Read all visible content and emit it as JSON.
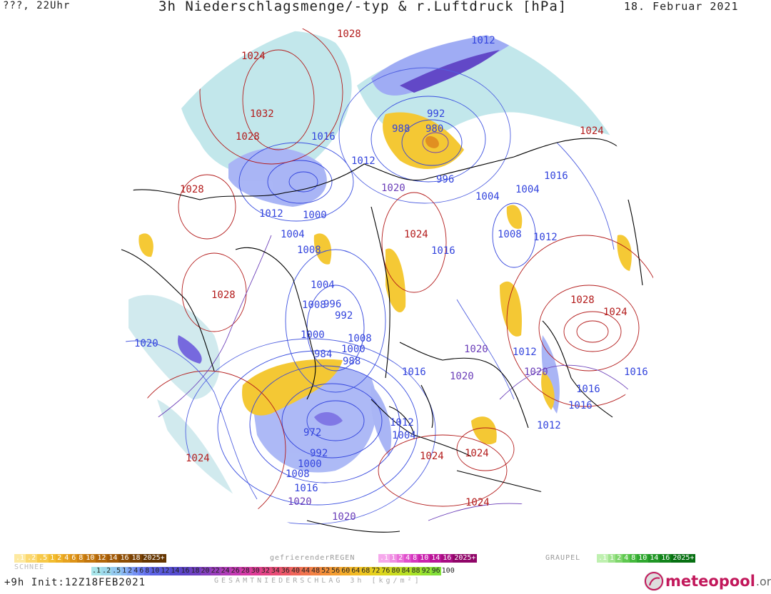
{
  "header": {
    "left": "???, 22Uhr",
    "title": "3h Niederschlagsmenge/-typ & r.Luftdruck [hPa]",
    "date": "18. Februar 2021"
  },
  "footer": {
    "init": "+9h  Init:12Z18FEB2021",
    "total_label": "GESAMTNIEDERSCHLAG 3h [kg/m²]",
    "logo_text": "meteopool",
    "logo_tld": ".org"
  },
  "colors": {
    "low_isobar": "#3344dd",
    "high_isobar": "#b31b1b",
    "mid_isobar": "#6a3db8",
    "coast": "#000000",
    "snow": "#f2c21f",
    "rain": "#9aa6f2",
    "mix": "#9fd6dc"
  },
  "legend": {
    "snow_title": "SCHNEE",
    "snow": {
      "labels": [
        ".1",
        ".2",
        ".5",
        "1",
        "2",
        "4",
        "6",
        "8",
        "10",
        "12",
        "14",
        "16",
        "18",
        "2025+"
      ],
      "colors": [
        "#fde9a0",
        "#fbd870",
        "#f7c94a",
        "#f2bd30",
        "#eeb025",
        "#e6a220",
        "#dd9318",
        "#d08412",
        "#c2760e",
        "#b2670b",
        "#a25a08",
        "#8e4e06",
        "#7a4204",
        "#643500"
      ]
    },
    "frz_title": "gefrierenderREGEN",
    "frz": {
      "labels": [
        ".1",
        "1",
        "2",
        "4",
        "8",
        "10",
        "14",
        "16",
        "2025+"
      ],
      "colors": [
        "#f6a9ec",
        "#f08fe3",
        "#ea6fd8",
        "#e04fcc",
        "#d636bf",
        "#ca22ae",
        "#bb1498",
        "#a80c82",
        "#900568"
      ]
    },
    "graupel_title": "GRAUPEL",
    "graupel": {
      "labels": [
        ".1",
        "1",
        "2",
        "4",
        "8",
        "10",
        "14",
        "16",
        "2025+"
      ],
      "colors": [
        "#bff0b0",
        "#9fe38d",
        "#7fd66c",
        "#5fc850",
        "#45b93d",
        "#30a830",
        "#209625",
        "#12831b",
        "#077012"
      ]
    },
    "total": {
      "labels": [
        ".1",
        ".2",
        ".5",
        "1",
        "2",
        "4",
        "6",
        "8",
        "10",
        "12",
        "14",
        "16",
        "18",
        "20",
        "22",
        "24",
        "26",
        "28",
        "30",
        "32",
        "34",
        "36",
        "40",
        "44",
        "48",
        "52",
        "56",
        "60",
        "64",
        "68",
        "72",
        "76",
        "80",
        "84",
        "88",
        "92",
        "96",
        "100"
      ],
      "colors": [
        "#a8e5ea",
        "#9dd8ea",
        "#93c8ee",
        "#8ab6f2",
        "#7fa2f4",
        "#7590f4",
        "#6b7ef2",
        "#6470ec",
        "#5d62e4",
        "#5858da",
        "#564cd0",
        "#5c44c8",
        "#6e40c2",
        "#8640c0",
        "#9a3ebc",
        "#b03cb8",
        "#c43ab2",
        "#d43aa6",
        "#de3c96",
        "#e44486",
        "#e84c76",
        "#ec5868",
        "#ef665a",
        "#f0744e",
        "#f28244",
        "#f4903a",
        "#f49e32",
        "#f4ac2a",
        "#f2ba24",
        "#eec620",
        "#e6d01e",
        "#dad61e",
        "#cadc20",
        "#b8e024",
        "#a6e22a",
        "#94e232",
        "#82e03a",
        "#ffffff"
      ]
    }
  },
  "pressure_labels": [
    {
      "text": "1028",
      "kind": "high"
    },
    {
      "text": "1024",
      "kind": "high"
    },
    {
      "text": "1012",
      "kind": "low"
    },
    {
      "text": "1032",
      "kind": "high"
    },
    {
      "text": "992",
      "kind": "low"
    },
    {
      "text": "1028",
      "kind": "high"
    },
    {
      "text": "1016",
      "kind": "low"
    },
    {
      "text": "988",
      "kind": "low"
    },
    {
      "text": "980",
      "kind": "low"
    },
    {
      "text": "1024",
      "kind": "high"
    },
    {
      "text": "1012",
      "kind": "low"
    },
    {
      "text": "996",
      "kind": "low"
    },
    {
      "text": "1016",
      "kind": "low"
    },
    {
      "text": "1028",
      "kind": "high"
    },
    {
      "text": "1020",
      "kind": "mid"
    },
    {
      "text": "1004",
      "kind": "low"
    },
    {
      "text": "1004",
      "kind": "low"
    },
    {
      "text": "1012",
      "kind": "low"
    },
    {
      "text": "1000",
      "kind": "low"
    },
    {
      "text": "1004",
      "kind": "low"
    },
    {
      "text": "1024",
      "kind": "high"
    },
    {
      "text": "1008",
      "kind": "low"
    },
    {
      "text": "1012",
      "kind": "low"
    },
    {
      "text": "1008",
      "kind": "low"
    },
    {
      "text": "1016",
      "kind": "low"
    },
    {
      "text": "1004",
      "kind": "low"
    },
    {
      "text": "1028",
      "kind": "high"
    },
    {
      "text": "1008",
      "kind": "low"
    },
    {
      "text": "996",
      "kind": "low"
    },
    {
      "text": "1028",
      "kind": "high"
    },
    {
      "text": "992",
      "kind": "low"
    },
    {
      "text": "1024",
      "kind": "high"
    },
    {
      "text": "1020",
      "kind": "low"
    },
    {
      "text": "1000",
      "kind": "low"
    },
    {
      "text": "1008",
      "kind": "low"
    },
    {
      "text": "1000",
      "kind": "low"
    },
    {
      "text": "984",
      "kind": "low"
    },
    {
      "text": "988",
      "kind": "low"
    },
    {
      "text": "1020",
      "kind": "mid"
    },
    {
      "text": "1012",
      "kind": "low"
    },
    {
      "text": "1016",
      "kind": "low"
    },
    {
      "text": "1020",
      "kind": "mid"
    },
    {
      "text": "1016",
      "kind": "low"
    },
    {
      "text": "1016",
      "kind": "low"
    },
    {
      "text": "1016",
      "kind": "low"
    },
    {
      "text": "1012",
      "kind": "low"
    },
    {
      "text": "1004",
      "kind": "low"
    },
    {
      "text": "1012",
      "kind": "low"
    },
    {
      "text": "1020",
      "kind": "mid"
    },
    {
      "text": "972",
      "kind": "low"
    },
    {
      "text": "1024",
      "kind": "high"
    },
    {
      "text": "1024",
      "kind": "high"
    },
    {
      "text": "1024",
      "kind": "high"
    },
    {
      "text": "992",
      "kind": "low"
    },
    {
      "text": "1000",
      "kind": "low"
    },
    {
      "text": "1008",
      "kind": "low"
    },
    {
      "text": "1016",
      "kind": "low"
    },
    {
      "text": "1020",
      "kind": "mid"
    },
    {
      "text": "1024",
      "kind": "high"
    },
    {
      "text": "1020",
      "kind": "mid"
    }
  ]
}
